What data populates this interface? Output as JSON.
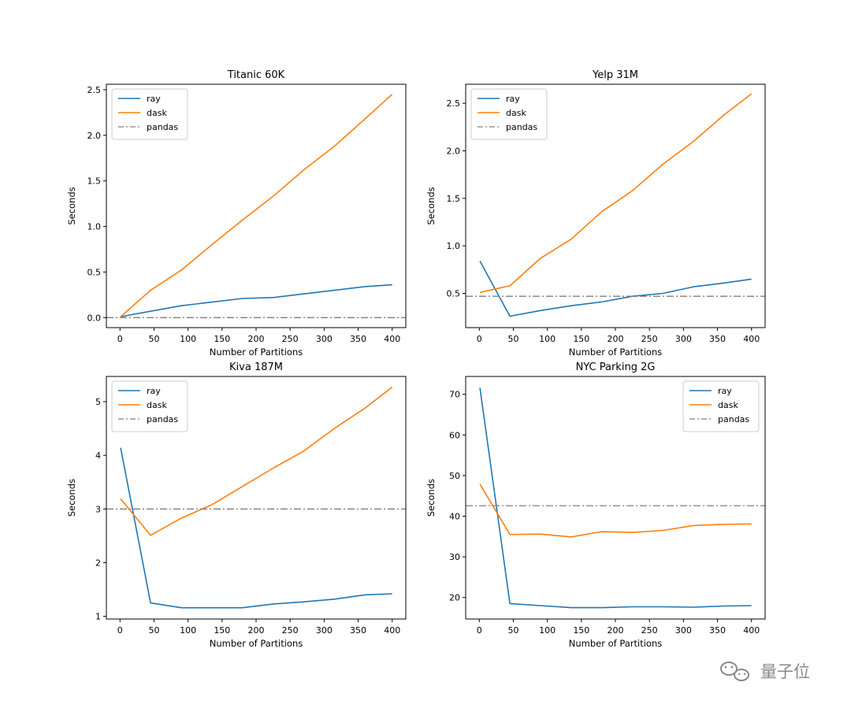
{
  "chart_data": [
    {
      "type": "line",
      "title": "Titanic 60K",
      "xlabel": "Number of Partitions",
      "ylabel": "Seconds",
      "xlim": [
        -20,
        420
      ],
      "ylim": [
        -0.11,
        2.56
      ],
      "xticks": [
        0,
        50,
        100,
        150,
        200,
        250,
        300,
        350,
        400
      ],
      "xtick_labels": [
        "0",
        "50",
        "100",
        "150",
        "200",
        "250",
        "300",
        "350",
        "400"
      ],
      "yticks": [
        0.0,
        0.5,
        1.0,
        1.5,
        2.0,
        2.5
      ],
      "ytick_labels": [
        "0.0",
        "0.5",
        "1.0",
        "1.5",
        "2.0",
        "2.5"
      ],
      "legend_position": "upper-left",
      "series": [
        {
          "name": "ray",
          "color": "#1f77b4",
          "style": "solid",
          "x": [
            1,
            45,
            90,
            135,
            180,
            225,
            270,
            315,
            360,
            400
          ],
          "y": [
            0.01,
            0.07,
            0.13,
            0.17,
            0.21,
            0.22,
            0.26,
            0.3,
            0.34,
            0.36
          ]
        },
        {
          "name": "dask",
          "color": "#ff7f0e",
          "style": "solid",
          "x": [
            1,
            45,
            90,
            135,
            180,
            225,
            270,
            315,
            360,
            400
          ],
          "y": [
            0.01,
            0.3,
            0.52,
            0.8,
            1.07,
            1.33,
            1.62,
            1.88,
            2.18,
            2.45
          ]
        },
        {
          "name": "pandas",
          "color": "#7f7f7f",
          "style": "dashdot",
          "x": [
            -20,
            420
          ],
          "y": [
            0.0,
            0.0
          ]
        }
      ]
    },
    {
      "type": "line",
      "title": "Yelp 31M",
      "xlabel": "Number of Partitions",
      "ylabel": "Seconds",
      "xlim": [
        -20,
        420
      ],
      "ylim": [
        0.14,
        2.7
      ],
      "xticks": [
        0,
        50,
        100,
        150,
        200,
        250,
        300,
        350,
        400
      ],
      "xtick_labels": [
        "0",
        "50",
        "100",
        "150",
        "200",
        "250",
        "300",
        "350",
        "400"
      ],
      "yticks": [
        0.5,
        1.0,
        1.5,
        2.0,
        2.5
      ],
      "ytick_labels": [
        "0.5",
        "1.0",
        "1.5",
        "2.0",
        "2.5"
      ],
      "legend_position": "upper-left",
      "series": [
        {
          "name": "ray",
          "color": "#1f77b4",
          "style": "solid",
          "x": [
            1,
            45,
            90,
            135,
            180,
            225,
            270,
            315,
            360,
            400
          ],
          "y": [
            0.84,
            0.26,
            0.32,
            0.37,
            0.41,
            0.47,
            0.5,
            0.57,
            0.61,
            0.65
          ]
        },
        {
          "name": "dask",
          "color": "#ff7f0e",
          "style": "solid",
          "x": [
            1,
            45,
            90,
            135,
            180,
            225,
            270,
            315,
            360,
            400
          ],
          "y": [
            0.51,
            0.58,
            0.87,
            1.07,
            1.36,
            1.58,
            1.86,
            2.1,
            2.38,
            2.6
          ]
        },
        {
          "name": "pandas",
          "color": "#7f7f7f",
          "style": "dashdot",
          "x": [
            -20,
            420
          ],
          "y": [
            0.47,
            0.47
          ]
        }
      ]
    },
    {
      "type": "line",
      "title": "Kiva 187M",
      "xlabel": "Number of Partitions",
      "ylabel": "Seconds",
      "xlim": [
        -20,
        420
      ],
      "ylim": [
        0.95,
        5.47
      ],
      "xticks": [
        0,
        50,
        100,
        150,
        200,
        250,
        300,
        350,
        400
      ],
      "xtick_labels": [
        "0",
        "50",
        "100",
        "150",
        "200",
        "250",
        "300",
        "350",
        "400"
      ],
      "yticks": [
        1,
        2,
        3,
        4,
        5
      ],
      "ytick_labels": [
        "1",
        "2",
        "3",
        "4",
        "5"
      ],
      "legend_position": "upper-left",
      "series": [
        {
          "name": "ray",
          "color": "#1f77b4",
          "style": "solid",
          "x": [
            1,
            45,
            90,
            135,
            180,
            225,
            270,
            315,
            360,
            400
          ],
          "y": [
            4.14,
            1.25,
            1.16,
            1.16,
            1.16,
            1.23,
            1.27,
            1.32,
            1.4,
            1.42
          ]
        },
        {
          "name": "dask",
          "color": "#ff7f0e",
          "style": "solid",
          "x": [
            1,
            45,
            90,
            135,
            180,
            225,
            270,
            315,
            360,
            400
          ],
          "y": [
            3.19,
            2.51,
            2.83,
            3.08,
            3.42,
            3.76,
            4.08,
            4.5,
            4.88,
            5.27
          ]
        },
        {
          "name": "pandas",
          "color": "#7f7f7f",
          "style": "dashdot",
          "x": [
            -20,
            420
          ],
          "y": [
            3.0,
            3.0
          ]
        }
      ]
    },
    {
      "type": "line",
      "title": "NYC Parking 2G",
      "xlabel": "Number of Partitions",
      "ylabel": "Seconds",
      "xlim": [
        -20,
        420
      ],
      "ylim": [
        14.7,
        74.4
      ],
      "xticks": [
        0,
        50,
        100,
        150,
        200,
        250,
        300,
        350,
        400
      ],
      "xtick_labels": [
        "0",
        "50",
        "100",
        "150",
        "200",
        "250",
        "300",
        "350",
        "400"
      ],
      "yticks": [
        20,
        30,
        40,
        50,
        60,
        70
      ],
      "ytick_labels": [
        "20",
        "30",
        "40",
        "50",
        "60",
        "70"
      ],
      "legend_position": "upper-right",
      "series": [
        {
          "name": "ray",
          "color": "#1f77b4",
          "style": "solid",
          "x": [
            1,
            45,
            90,
            135,
            180,
            225,
            270,
            315,
            360,
            400
          ],
          "y": [
            71.6,
            18.5,
            18.0,
            17.5,
            17.5,
            17.7,
            17.7,
            17.6,
            17.9,
            18.0
          ]
        },
        {
          "name": "dask",
          "color": "#ff7f0e",
          "style": "solid",
          "x": [
            1,
            45,
            90,
            135,
            180,
            225,
            270,
            315,
            360,
            400
          ],
          "y": [
            47.9,
            35.5,
            35.6,
            34.9,
            36.2,
            36.0,
            36.5,
            37.7,
            38.0,
            38.1
          ]
        },
        {
          "name": "pandas",
          "color": "#7f7f7f",
          "style": "dashdot",
          "x": [
            -20,
            420
          ],
          "y": [
            42.6,
            42.6
          ]
        }
      ]
    }
  ],
  "watermark": {
    "text": "量子位",
    "icon": "wechat-icon"
  }
}
